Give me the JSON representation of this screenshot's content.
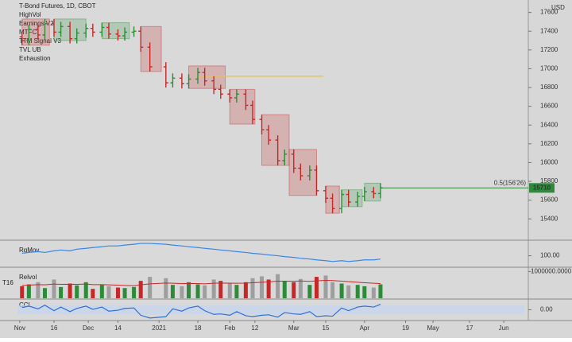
{
  "chart_data": {
    "type": "ohlc",
    "title": "T-Bond Futures, 1D, CBOT",
    "legend_items": [
      "HighVol",
      "Earnings V2",
      "MTFC",
      "TTM Signal V3",
      "TVL UB",
      "Exhaustion"
    ],
    "currency": "USD",
    "x": [
      1,
      4,
      8,
      11,
      15,
      18,
      22,
      25,
      29,
      32,
      36,
      39,
      43,
      46,
      50,
      53,
      57,
      64,
      67,
      71,
      74,
      78,
      81,
      85,
      88,
      92,
      95,
      99,
      102,
      106,
      109,
      113,
      116,
      120,
      123,
      127,
      130,
      134,
      137,
      141,
      144,
      148,
      151,
      155,
      158
    ],
    "open": [
      173.4,
      173.0,
      174.2,
      173.6,
      174.8,
      173.9,
      174.5,
      173.2,
      173.8,
      174.3,
      173.9,
      174.4,
      173.7,
      173.5,
      173.9,
      174.0,
      172.3,
      170.2,
      168.5,
      169.0,
      168.4,
      168.9,
      169.6,
      168.7,
      167.8,
      167.3,
      166.9,
      167.3,
      166.1,
      164.6,
      163.5,
      162.4,
      160.2,
      160.9,
      159.4,
      158.6,
      159.2,
      157.0,
      156.2,
      155.1,
      156.6,
      155.8,
      156.4,
      156.9,
      156.7
    ],
    "high": [
      173.9,
      174.7,
      174.7,
      175.3,
      175.3,
      175.0,
      175.0,
      174.3,
      174.8,
      174.8,
      174.9,
      174.9,
      174.2,
      174.4,
      174.5,
      174.5,
      172.8,
      170.7,
      169.5,
      169.5,
      169.4,
      170.1,
      170.1,
      169.2,
      168.3,
      167.8,
      167.8,
      167.8,
      166.6,
      165.1,
      164.0,
      162.9,
      161.4,
      161.4,
      159.9,
      159.7,
      159.7,
      157.5,
      156.7,
      157.1,
      157.1,
      156.9,
      157.4,
      157.4,
      157.8
    ],
    "low": [
      172.5,
      172.5,
      173.1,
      173.1,
      173.4,
      173.4,
      172.7,
      172.7,
      173.3,
      173.4,
      173.4,
      173.2,
      173.0,
      173.0,
      173.4,
      171.8,
      169.7,
      168.0,
      168.0,
      167.9,
      167.9,
      168.4,
      168.2,
      167.3,
      166.8,
      166.4,
      166.4,
      165.6,
      164.1,
      163.0,
      161.9,
      159.7,
      159.7,
      158.9,
      158.1,
      158.1,
      156.5,
      155.7,
      154.6,
      154.6,
      155.3,
      155.3,
      155.9,
      156.2,
      156.2
    ],
    "close": [
      173.0,
      174.2,
      173.6,
      174.8,
      173.9,
      174.5,
      173.2,
      173.8,
      174.3,
      173.9,
      174.4,
      173.7,
      173.5,
      173.9,
      174.0,
      172.3,
      170.2,
      168.5,
      169.0,
      168.4,
      168.9,
      169.6,
      168.7,
      167.8,
      167.3,
      166.9,
      167.3,
      166.1,
      164.6,
      163.5,
      162.4,
      160.2,
      160.9,
      159.4,
      158.6,
      159.2,
      157.0,
      156.2,
      155.1,
      156.6,
      155.8,
      156.4,
      156.9,
      156.7,
      157.3
    ],
    "up_color": "#2e8b3a",
    "down_color": "#c62828",
    "xlim": [
      -1,
      221
    ],
    "xticks": [
      {
        "value": 0,
        "label": "Nov"
      },
      {
        "value": 15,
        "label": "16"
      },
      {
        "value": 30,
        "label": "Dec"
      },
      {
        "value": 43,
        "label": "14"
      },
      {
        "value": 61,
        "label": "2021"
      },
      {
        "value": 78,
        "label": "18"
      },
      {
        "value": 92,
        "label": "Feb"
      },
      {
        "value": 103,
        "label": "12"
      },
      {
        "value": 120,
        "label": "Mar"
      },
      {
        "value": 134,
        "label": "15"
      },
      {
        "value": 151,
        "label": "Apr"
      },
      {
        "value": 169,
        "label": "19"
      },
      {
        "value": 181,
        "label": "May"
      },
      {
        "value": 197,
        "label": "17"
      },
      {
        "value": 212,
        "label": "Jun"
      }
    ],
    "ylim": [
      151.9,
      176.9
    ],
    "yticks": [
      {
        "value": 176,
        "label": "17600"
      },
      {
        "value": 174,
        "label": "17400"
      },
      {
        "value": 172,
        "label": "17200"
      },
      {
        "value": 170,
        "label": "17000"
      },
      {
        "value": 168,
        "label": "16800"
      },
      {
        "value": 166,
        "label": "16600"
      },
      {
        "value": 164,
        "label": "16400"
      },
      {
        "value": 162,
        "label": "16200"
      },
      {
        "value": 160,
        "label": "16000"
      },
      {
        "value": 158,
        "label": "15800"
      },
      {
        "value": 156,
        "label": "15600"
      },
      {
        "value": 154,
        "label": "15400"
      }
    ],
    "zones": [
      {
        "x": [
          1,
          13
        ],
        "y": [
          172.5,
          175.3
        ],
        "color": "#c62828"
      },
      {
        "x": [
          15,
          29
        ],
        "y": [
          173.0,
          175.3
        ],
        "color": "#2e8b3a"
      },
      {
        "x": [
          36,
          48
        ],
        "y": [
          173.2,
          174.9
        ],
        "color": "#2e8b3a"
      },
      {
        "x": [
          53,
          62
        ],
        "y": [
          169.7,
          174.5
        ],
        "color": "#c62828"
      },
      {
        "x": [
          74,
          90
        ],
        "y": [
          167.9,
          170.3
        ],
        "color": "#c62828"
      },
      {
        "x": [
          92,
          103
        ],
        "y": [
          164.1,
          167.8
        ],
        "color": "#c62828"
      },
      {
        "x": [
          106,
          118
        ],
        "y": [
          159.7,
          165.1
        ],
        "color": "#c62828"
      },
      {
        "x": [
          118,
          130
        ],
        "y": [
          156.5,
          161.4
        ],
        "color": "#c62828"
      },
      {
        "x": [
          134,
          140
        ],
        "y": [
          154.6,
          157.5
        ],
        "color": "#c62828"
      },
      {
        "x": [
          141,
          150
        ],
        "y": [
          155.3,
          157.1
        ],
        "color": "#2e8b3a"
      },
      {
        "x": [
          151,
          158
        ],
        "y": [
          155.9,
          157.8
        ],
        "color": "#2e8b3a"
      }
    ],
    "level_line": {
      "value": 169.2,
      "x": [
        78,
        133
      ],
      "color": "#f0c040"
    },
    "last_price": {
      "value": 157.3,
      "label": "15710",
      "annotation": "0.5(156'26)",
      "color": "#2e8b3a"
    },
    "rgmov": {
      "name": "RgMov",
      "color": "#3a86e8",
      "ylim": [
        87,
        117
      ],
      "ytick": {
        "value": 100,
        "label": "100.00"
      },
      "values": [
        103,
        104,
        105,
        104,
        106,
        107,
        106,
        108,
        109,
        110,
        111,
        112,
        112,
        113,
        114,
        115,
        115,
        114,
        113,
        112,
        111,
        110,
        109,
        108,
        107,
        106,
        105,
        104,
        103,
        102,
        101,
        100,
        99,
        98,
        97,
        96,
        95,
        94,
        93,
        94,
        93,
        94,
        95,
        95,
        96
      ]
    },
    "volume": {
      "name": "Relvol",
      "side_label": "T16",
      "ylim": [
        0,
        1100000
      ],
      "ytick": {
        "value": 1000000,
        "label": "1000000.0000"
      },
      "neutral_color": "#9e9e9e",
      "avg_color": "#c62828",
      "values": [
        450000,
        520000,
        600000,
        380000,
        700000,
        420000,
        550000,
        480000,
        600000,
        350000,
        500000,
        450000,
        400000,
        380000,
        420000,
        650000,
        800000,
        750000,
        500000,
        450000,
        600000,
        520000,
        480000,
        700000,
        650000,
        550000,
        500000,
        600000,
        750000,
        820000,
        700000,
        900000,
        650000,
        600000,
        720000,
        500000,
        800000,
        850000,
        600000,
        550000,
        480000,
        500000,
        450000,
        400000,
        520000
      ],
      "avg": [
        480000,
        490000,
        510000,
        500000,
        530000,
        520000,
        525000,
        520000,
        530000,
        510000,
        510000,
        500000,
        490000,
        480000,
        470000,
        500000,
        540000,
        570000,
        560000,
        550000,
        555000,
        550000,
        540000,
        560000,
        570000,
        565000,
        560000,
        565000,
        580000,
        600000,
        610000,
        640000,
        640000,
        635000,
        645000,
        630000,
        650000,
        670000,
        660000,
        640000,
        620000,
        600000,
        580000,
        560000,
        550000
      ]
    },
    "cci": {
      "name": "CCI",
      "color": "#2f6fd6",
      "band_color": "#c5d5ee",
      "ylim": [
        -200,
        200
      ],
      "ytick": {
        "value": 0,
        "label": "0.00"
      },
      "values": [
        50,
        80,
        20,
        100,
        -20,
        60,
        -40,
        30,
        80,
        10,
        60,
        -30,
        -10,
        30,
        40,
        -120,
        -180,
        -150,
        20,
        -30,
        40,
        80,
        -20,
        -100,
        -90,
        -120,
        -40,
        -130,
        -150,
        -120,
        -110,
        -160,
        -60,
        -90,
        -100,
        -40,
        -150,
        -130,
        -140,
        40,
        -20,
        60,
        80,
        60,
        120
      ]
    }
  }
}
